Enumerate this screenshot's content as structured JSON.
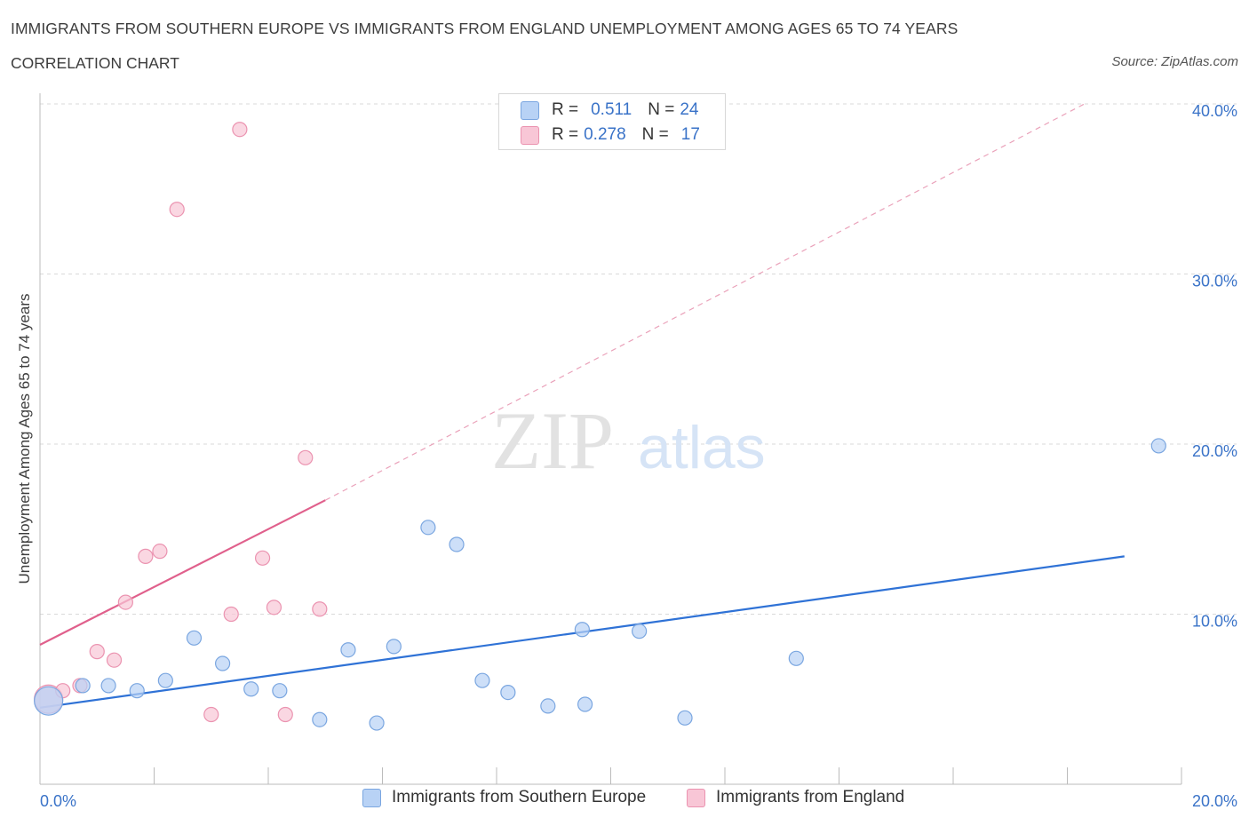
{
  "title": "IMMIGRANTS FROM SOUTHERN EUROPE VS IMMIGRANTS FROM ENGLAND UNEMPLOYMENT AMONG AGES 65 TO 74 YEARS",
  "subtitle": "CORRELATION CHART",
  "source": "Source: ZipAtlas.com",
  "watermark": {
    "zip": "ZIP",
    "atlas": "atlas"
  },
  "colors": {
    "blue_fill": "#b8d2f5",
    "blue_stroke": "#7aa6e0",
    "blue_line": "#2f72d6",
    "pink_fill": "#f8c6d6",
    "pink_stroke": "#eb93b0",
    "pink_line": "#e0608c",
    "grid": "#d9d9d9",
    "tick_text": "#3a73c8"
  },
  "legend": {
    "rows": [
      {
        "r_label": "R =",
        "r_value": "0.511",
        "n_label": "N =",
        "n_value": "24"
      },
      {
        "r_label": "R =",
        "r_value": "0.278",
        "n_label": "N =",
        "n_value": "17"
      }
    ]
  },
  "chart_data": {
    "type": "scatter",
    "title": "IMMIGRANTS FROM SOUTHERN EUROPE VS IMMIGRANTS FROM ENGLAND UNEMPLOYMENT AMONG AGES 65 TO 74 YEARS",
    "xlabel": "",
    "ylabel": "Unemployment Among Ages 65 to 74 years",
    "xlim": [
      0,
      20
    ],
    "ylim": [
      0,
      40
    ],
    "x_tick_labels": [
      "0.0%",
      "20.0%"
    ],
    "y_tick_labels": [
      "10.0%",
      "20.0%",
      "30.0%",
      "40.0%"
    ],
    "y_ticks": [
      10,
      20,
      30,
      40
    ],
    "series": [
      {
        "name": "Immigrants from Southern Europe",
        "color": "blue",
        "R": 0.511,
        "N": 24,
        "points": [
          {
            "x": 0.15,
            "y": 4.9,
            "big": true
          },
          {
            "x": 0.75,
            "y": 5.8
          },
          {
            "x": 1.2,
            "y": 5.8
          },
          {
            "x": 1.7,
            "y": 5.5
          },
          {
            "x": 2.2,
            "y": 6.1
          },
          {
            "x": 2.7,
            "y": 8.6
          },
          {
            "x": 3.2,
            "y": 7.1
          },
          {
            "x": 3.7,
            "y": 5.6
          },
          {
            "x": 4.2,
            "y": 5.5
          },
          {
            "x": 4.9,
            "y": 3.8
          },
          {
            "x": 5.4,
            "y": 7.9
          },
          {
            "x": 5.9,
            "y": 3.6
          },
          {
            "x": 6.2,
            "y": 8.1
          },
          {
            "x": 6.8,
            "y": 15.1
          },
          {
            "x": 7.3,
            "y": 14.1
          },
          {
            "x": 7.75,
            "y": 6.1
          },
          {
            "x": 8.2,
            "y": 5.4
          },
          {
            "x": 8.9,
            "y": 4.6
          },
          {
            "x": 9.5,
            "y": 9.1
          },
          {
            "x": 9.55,
            "y": 4.7
          },
          {
            "x": 10.5,
            "y": 9.0
          },
          {
            "x": 11.3,
            "y": 3.9
          },
          {
            "x": 13.25,
            "y": 7.4
          },
          {
            "x": 19.6,
            "y": 19.9
          }
        ],
        "trend": {
          "x0": 0.0,
          "y0": 4.5,
          "x1": 19.0,
          "y1": 13.4
        }
      },
      {
        "name": "Immigrants from England",
        "color": "pink",
        "R": 0.278,
        "N": 17,
        "points": [
          {
            "x": 0.15,
            "y": 5.0,
            "big": true
          },
          {
            "x": 0.4,
            "y": 5.5
          },
          {
            "x": 0.7,
            "y": 5.8
          },
          {
            "x": 1.0,
            "y": 7.8
          },
          {
            "x": 1.3,
            "y": 7.3
          },
          {
            "x": 1.5,
            "y": 10.7
          },
          {
            "x": 1.85,
            "y": 13.4
          },
          {
            "x": 2.1,
            "y": 13.7
          },
          {
            "x": 2.4,
            "y": 33.8
          },
          {
            "x": 3.0,
            "y": 4.1
          },
          {
            "x": 3.35,
            "y": 10.0
          },
          {
            "x": 3.5,
            "y": 38.5
          },
          {
            "x": 3.9,
            "y": 13.3
          },
          {
            "x": 4.1,
            "y": 10.4
          },
          {
            "x": 4.3,
            "y": 4.1
          },
          {
            "x": 4.65,
            "y": 19.2
          },
          {
            "x": 4.9,
            "y": 10.3
          }
        ],
        "trend": {
          "x0": 0.0,
          "y0": 8.2,
          "x1": 5.0,
          "y1": 16.7
        },
        "trend_extension": {
          "x0": 5.0,
          "y0": 16.7,
          "x1": 18.3,
          "y1": 40.0
        }
      }
    ]
  }
}
